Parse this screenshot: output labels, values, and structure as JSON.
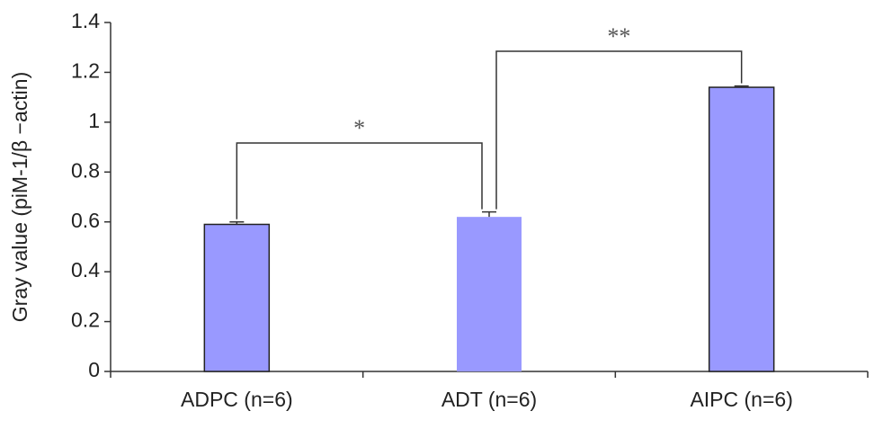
{
  "chart_data": {
    "type": "bar",
    "y_label": "Gray value (piM-1/β −actin)",
    "categories": [
      "ADPC (n=6)",
      "ADT (n=6)",
      "AIPC (n=6)"
    ],
    "values": [
      0.59,
      0.62,
      1.14
    ],
    "errors": [
      0.01,
      0.02,
      0.005
    ],
    "colors": [
      "#9999ff",
      "#9999ff",
      "#9999ff"
    ],
    "ylim": [
      0,
      1.4
    ],
    "yticks": [
      0,
      0.2,
      0.4,
      0.6,
      0.8,
      1,
      1.2,
      1.4
    ],
    "annotations": [
      "*",
      "**"
    ]
  }
}
